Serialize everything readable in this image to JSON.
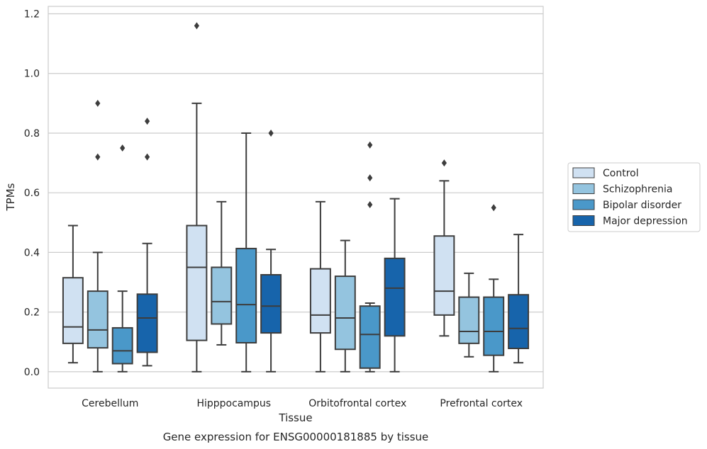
{
  "chart_data": {
    "type": "boxplot",
    "xlabel": "Tissue",
    "ylabel": "TPMs",
    "caption": "Gene expression for ENSG00000181885 by tissue",
    "ylim": [
      -0.055,
      1.225
    ],
    "yticks": [
      "0.0",
      "0.2",
      "0.4",
      "0.6",
      "0.8",
      "1.0",
      "1.2"
    ],
    "grid": true,
    "legend_position": "right",
    "categories": [
      "Cerebellum",
      "Hipppocampus",
      "Orbitofrontal cortex",
      "Prefrontal cortex"
    ],
    "series": [
      {
        "name": "Control",
        "color": "#d0e1f2",
        "boxes": [
          {
            "whislo": 0.03,
            "q1": 0.095,
            "med": 0.15,
            "q3": 0.315,
            "whishi": 0.49,
            "fliers": []
          },
          {
            "whislo": 0.0,
            "q1": 0.105,
            "med": 0.35,
            "q3": 0.49,
            "whishi": 0.9,
            "fliers": [
              1.16
            ]
          },
          {
            "whislo": 0.0,
            "q1": 0.13,
            "med": 0.19,
            "q3": 0.345,
            "whishi": 0.57,
            "fliers": []
          },
          {
            "whislo": 0.12,
            "q1": 0.19,
            "med": 0.27,
            "q3": 0.455,
            "whishi": 0.64,
            "fliers": [
              0.7
            ]
          }
        ]
      },
      {
        "name": "Schizophrenia",
        "color": "#94c4df",
        "boxes": [
          {
            "whislo": 0.0,
            "q1": 0.08,
            "med": 0.14,
            "q3": 0.27,
            "whishi": 0.4,
            "fliers": [
              0.72,
              0.9
            ]
          },
          {
            "whislo": 0.09,
            "q1": 0.16,
            "med": 0.235,
            "q3": 0.35,
            "whishi": 0.57,
            "fliers": []
          },
          {
            "whislo": 0.0,
            "q1": 0.075,
            "med": 0.18,
            "q3": 0.32,
            "whishi": 0.44,
            "fliers": []
          },
          {
            "whislo": 0.05,
            "q1": 0.095,
            "med": 0.135,
            "q3": 0.25,
            "whishi": 0.33,
            "fliers": []
          }
        ]
      },
      {
        "name": "Bipolar disorder",
        "color": "#4a98c9",
        "boxes": [
          {
            "whislo": 0.0,
            "q1": 0.027,
            "med": 0.07,
            "q3": 0.147,
            "whishi": 0.27,
            "fliers": [
              0.75
            ]
          },
          {
            "whislo": 0.0,
            "q1": 0.097,
            "med": 0.225,
            "q3": 0.413,
            "whishi": 0.8,
            "fliers": []
          },
          {
            "whislo": 0.0,
            "q1": 0.012,
            "med": 0.125,
            "q3": 0.22,
            "whishi": 0.23,
            "fliers": [
              0.56,
              0.65,
              0.76
            ]
          },
          {
            "whislo": 0.0,
            "q1": 0.055,
            "med": 0.135,
            "q3": 0.25,
            "whishi": 0.31,
            "fliers": [
              0.55
            ]
          }
        ]
      },
      {
        "name": "Major depression",
        "color": "#1764ab",
        "boxes": [
          {
            "whislo": 0.02,
            "q1": 0.065,
            "med": 0.18,
            "q3": 0.26,
            "whishi": 0.43,
            "fliers": [
              0.72,
              0.84
            ]
          },
          {
            "whislo": 0.0,
            "q1": 0.13,
            "med": 0.22,
            "q3": 0.325,
            "whishi": 0.41,
            "fliers": [
              0.8
            ]
          },
          {
            "whislo": 0.0,
            "q1": 0.12,
            "med": 0.28,
            "q3": 0.38,
            "whishi": 0.58,
            "fliers": []
          },
          {
            "whislo": 0.03,
            "q1": 0.078,
            "med": 0.145,
            "q3": 0.258,
            "whishi": 0.46,
            "fliers": []
          }
        ]
      }
    ]
  }
}
